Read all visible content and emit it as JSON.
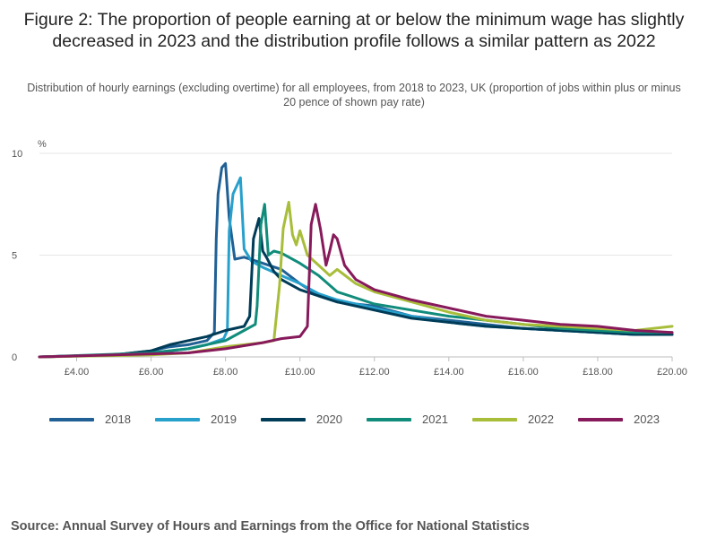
{
  "title": "Figure 2: The proportion of people earning at or below the minimum wage has slightly decreased in 2023 and the distribution profile follows a similar pattern as 2022",
  "subtitle": "Distribution of hourly earnings (excluding overtime) for all employees, from 2018 to 2023, UK (proportion of jobs within plus or minus 20 pence of shown pay rate)",
  "source": "Source: Annual Survey of Hours and Earnings from the Office for National Statistics",
  "chart_data": {
    "type": "line",
    "title": "Figure 2: The proportion of people earning at or below the minimum wage has slightly decreased in 2023 and the distribution profile follows a similar pattern as 2022",
    "subtitle": "Distribution of hourly earnings (excluding overtime) for all employees, from 2018 to 2023, UK (proportion of jobs within plus or minus 20 pence of shown pay rate)",
    "ylabel": "%",
    "xlabel": "",
    "xlim": [
      3.0,
      20.0
    ],
    "ylim": [
      0,
      10
    ],
    "x_ticks": [
      4,
      6,
      8,
      10,
      12,
      14,
      16,
      18,
      20
    ],
    "x_tick_labels": [
      "£4.00",
      "£6.00",
      "£8.00",
      "£10.00",
      "£12.00",
      "£14.00",
      "£16.00",
      "£18.00",
      "£20.00"
    ],
    "y_ticks": [
      0,
      5,
      10
    ],
    "y_tick_labels": [
      "0",
      "5",
      "10"
    ],
    "grid": true,
    "legend_position": "bottom",
    "series": [
      {
        "name": "2018",
        "color": "#206095",
        "x": [
          3.0,
          5.0,
          6.0,
          6.5,
          7.0,
          7.5,
          7.7,
          7.75,
          7.8,
          7.9,
          8.0,
          8.1,
          8.25,
          8.5,
          9.0,
          9.5,
          10.0,
          10.5,
          11.0,
          12.0,
          13.0,
          14.0,
          15.0,
          16.0,
          17.0,
          18.0,
          19.0,
          20.0
        ],
        "y": [
          0.0,
          0.1,
          0.3,
          0.5,
          0.6,
          0.8,
          1.2,
          5.8,
          8.0,
          9.3,
          9.5,
          6.8,
          4.8,
          4.9,
          4.6,
          4.3,
          3.6,
          3.0,
          2.7,
          2.5,
          2.0,
          1.8,
          1.6,
          1.4,
          1.3,
          1.2,
          1.1,
          1.1
        ]
      },
      {
        "name": "2019",
        "color": "#27a0cc",
        "x": [
          3.0,
          5.0,
          6.0,
          7.0,
          7.5,
          7.95,
          8.05,
          8.1,
          8.2,
          8.4,
          8.5,
          8.7,
          9.0,
          9.5,
          10.0,
          10.5,
          11.0,
          12.0,
          13.0,
          14.0,
          15.0,
          16.0,
          17.0,
          18.0,
          19.0,
          20.0
        ],
        "y": [
          0.0,
          0.1,
          0.2,
          0.4,
          0.6,
          0.9,
          1.3,
          6.2,
          8.0,
          8.8,
          5.3,
          4.7,
          4.4,
          4.0,
          3.6,
          3.1,
          2.8,
          2.4,
          2.0,
          1.7,
          1.5,
          1.4,
          1.3,
          1.2,
          1.1,
          1.1
        ]
      },
      {
        "name": "2020",
        "color": "#003c57",
        "x": [
          3.0,
          5.0,
          6.0,
          6.5,
          7.0,
          7.5,
          8.0,
          8.5,
          8.65,
          8.75,
          8.9,
          9.0,
          9.1,
          9.3,
          9.5,
          10.0,
          10.5,
          11.0,
          12.0,
          13.0,
          14.0,
          15.0,
          16.0,
          17.0,
          18.0,
          19.0,
          20.0
        ],
        "y": [
          0.0,
          0.1,
          0.3,
          0.6,
          0.8,
          1.0,
          1.3,
          1.5,
          2.0,
          5.8,
          6.8,
          5.2,
          4.9,
          4.2,
          3.8,
          3.3,
          3.0,
          2.7,
          2.3,
          1.9,
          1.7,
          1.5,
          1.4,
          1.3,
          1.2,
          1.1,
          1.1
        ]
      },
      {
        "name": "2021",
        "color": "#118c7b",
        "x": [
          3.0,
          6.0,
          7.0,
          8.0,
          8.5,
          8.8,
          8.85,
          8.95,
          9.05,
          9.15,
          9.3,
          9.5,
          10.0,
          10.5,
          11.0,
          12.0,
          13.0,
          14.0,
          15.0,
          16.0,
          17.0,
          18.0,
          19.0,
          20.0
        ],
        "y": [
          0.0,
          0.2,
          0.4,
          0.8,
          1.3,
          1.6,
          2.5,
          6.5,
          7.5,
          5.0,
          5.2,
          5.1,
          4.6,
          4.0,
          3.2,
          2.6,
          2.3,
          2.0,
          1.8,
          1.6,
          1.4,
          1.3,
          1.2,
          1.2
        ]
      },
      {
        "name": "2022",
        "color": "#a8bd3a",
        "x": [
          3.0,
          6.0,
          7.0,
          8.0,
          9.0,
          9.3,
          9.45,
          9.55,
          9.7,
          9.8,
          9.9,
          10.0,
          10.2,
          10.5,
          10.8,
          11.0,
          11.5,
          12.0,
          13.0,
          14.0,
          15.0,
          16.0,
          17.0,
          18.0,
          19.0,
          20.0
        ],
        "y": [
          0.0,
          0.1,
          0.2,
          0.5,
          0.7,
          0.8,
          3.5,
          6.3,
          7.6,
          6.0,
          5.5,
          6.2,
          5.0,
          4.5,
          4.0,
          4.3,
          3.6,
          3.2,
          2.7,
          2.2,
          1.8,
          1.6,
          1.5,
          1.4,
          1.3,
          1.5
        ]
      },
      {
        "name": "2023",
        "color": "#871a5b",
        "x": [
          3.0,
          7.0,
          8.0,
          9.0,
          9.5,
          10.0,
          10.2,
          10.3,
          10.42,
          10.55,
          10.7,
          10.8,
          10.9,
          11.0,
          11.2,
          11.5,
          12.0,
          13.0,
          14.0,
          15.0,
          16.0,
          17.0,
          18.0,
          19.0,
          20.0
        ],
        "y": [
          0.0,
          0.2,
          0.4,
          0.7,
          0.9,
          1.0,
          1.5,
          6.5,
          7.5,
          6.3,
          4.5,
          5.2,
          6.0,
          5.8,
          4.5,
          3.8,
          3.3,
          2.8,
          2.4,
          2.0,
          1.8,
          1.6,
          1.5,
          1.3,
          1.2
        ]
      }
    ]
  }
}
